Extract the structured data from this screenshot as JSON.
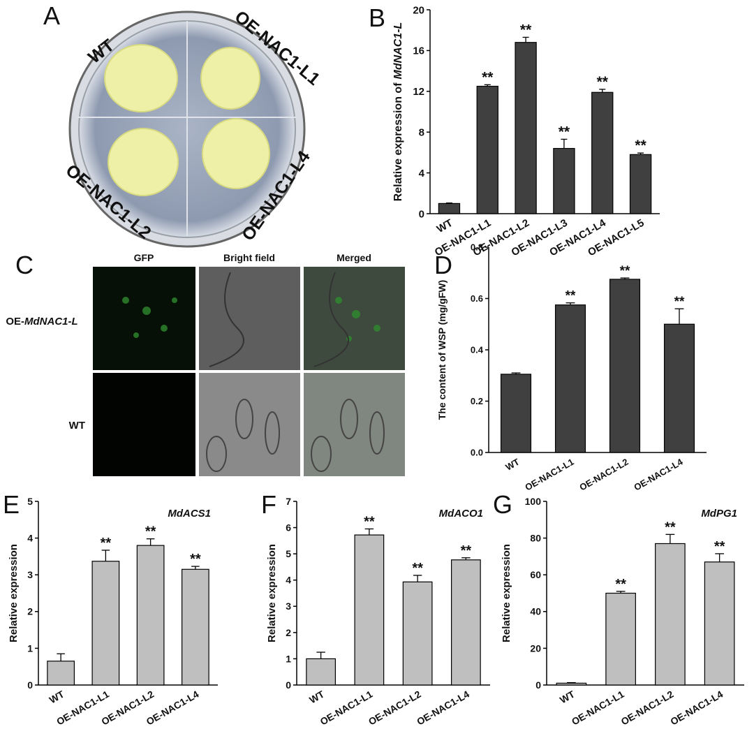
{
  "panel_a": {
    "panel": "A",
    "labels": [
      "WT",
      "OE-NAC1-L1",
      "OE-NAC1-L2",
      "OE-NAC1-L4"
    ]
  },
  "panel_c": {
    "panel": "C",
    "columns": [
      "GFP",
      "Bright field",
      "Merged"
    ],
    "rows": [
      {
        "prefix": "OE-",
        "gene": "MdNAC1-L"
      },
      {
        "text": "WT"
      }
    ]
  },
  "chart_data": [
    {
      "type": "bar",
      "panel": "B",
      "ylabel": "Relative expression of",
      "ylabel_gene": "MdNAC1-L",
      "categories": [
        "WT",
        "OE-NAC1-L1",
        "OE-NAC1-L2",
        "OE-NAC1-L3",
        "OE-NAC1-L4",
        "OE-NAC1-L5"
      ],
      "series": [
        {
          "color": "#404040",
          "values": [
            1.0,
            12.5,
            16.8,
            6.4,
            11.9,
            5.8
          ],
          "errors": [
            0.05,
            0.15,
            0.5,
            0.9,
            0.3,
            0.15
          ]
        }
      ],
      "annotations": [
        null,
        "**",
        "**",
        "**",
        "**",
        "**"
      ],
      "ylim": [
        0,
        20
      ],
      "yticks": [
        0,
        4,
        8,
        12,
        16,
        20
      ]
    },
    {
      "type": "bar",
      "panel": "D",
      "ylabel": "The content of WSP (mg/gFW)",
      "categories": [
        "WT",
        "OE-NAC1-L1",
        "OE-NAC1-L2",
        "OE-NAC1-L4"
      ],
      "series": [
        {
          "color": "#404040",
          "values": [
            0.305,
            0.575,
            0.675,
            0.5
          ],
          "errors": [
            0.005,
            0.008,
            0.005,
            0.06
          ]
        }
      ],
      "annotations": [
        null,
        "**",
        "**",
        "**"
      ],
      "ylim": [
        0,
        0.8
      ],
      "yticks": [
        {
          "value": 0,
          "label": "0.0"
        },
        0.2,
        0.4,
        0.6,
        0.8
      ]
    },
    {
      "type": "bar",
      "panel": "E",
      "ylabel": "Relative expression",
      "gene": "MdACS1",
      "categories": [
        "WT",
        "OE-NAC1-L1",
        "OE-NAC1-L2",
        "OE-NAC1-L4"
      ],
      "series": [
        {
          "color": "#bfbfbf",
          "values": [
            0.65,
            3.37,
            3.8,
            3.15
          ],
          "errors": [
            0.2,
            0.3,
            0.18,
            0.08
          ]
        }
      ],
      "annotations": [
        null,
        "**",
        "**",
        "**"
      ],
      "ylim": [
        0,
        5
      ],
      "yticks": [
        0,
        1,
        2,
        3,
        4,
        5
      ]
    },
    {
      "type": "bar",
      "panel": "F",
      "ylabel": "Relative expression",
      "gene": "MdACO1",
      "categories": [
        "WT",
        "OE-NAC1-L1",
        "OE-NAC1-L2",
        "OE-NAC1-L4"
      ],
      "series": [
        {
          "color": "#bfbfbf",
          "values": [
            1.0,
            5.72,
            3.93,
            4.77
          ],
          "errors": [
            0.25,
            0.23,
            0.25,
            0.08
          ]
        }
      ],
      "annotations": [
        null,
        "**",
        "**",
        "**"
      ],
      "ylim": [
        0,
        7
      ],
      "yticks": [
        0,
        1,
        2,
        3,
        4,
        5,
        6,
        7
      ]
    },
    {
      "type": "bar",
      "panel": "G",
      "ylabel": "Relative expression",
      "gene": "MdPG1",
      "categories": [
        "WT",
        "OE-NAC1-L1",
        "OE-NAC1-L2",
        "OE-NAC1-L4"
      ],
      "series": [
        {
          "color": "#bfbfbf",
          "values": [
            1,
            50,
            77,
            67
          ],
          "errors": [
            0.3,
            1,
            5,
            4.5
          ]
        }
      ],
      "annotations": [
        null,
        "**",
        "**",
        "**"
      ],
      "ylim": [
        0,
        100
      ],
      "yticks": [
        0,
        20,
        40,
        60,
        80,
        100
      ]
    }
  ]
}
